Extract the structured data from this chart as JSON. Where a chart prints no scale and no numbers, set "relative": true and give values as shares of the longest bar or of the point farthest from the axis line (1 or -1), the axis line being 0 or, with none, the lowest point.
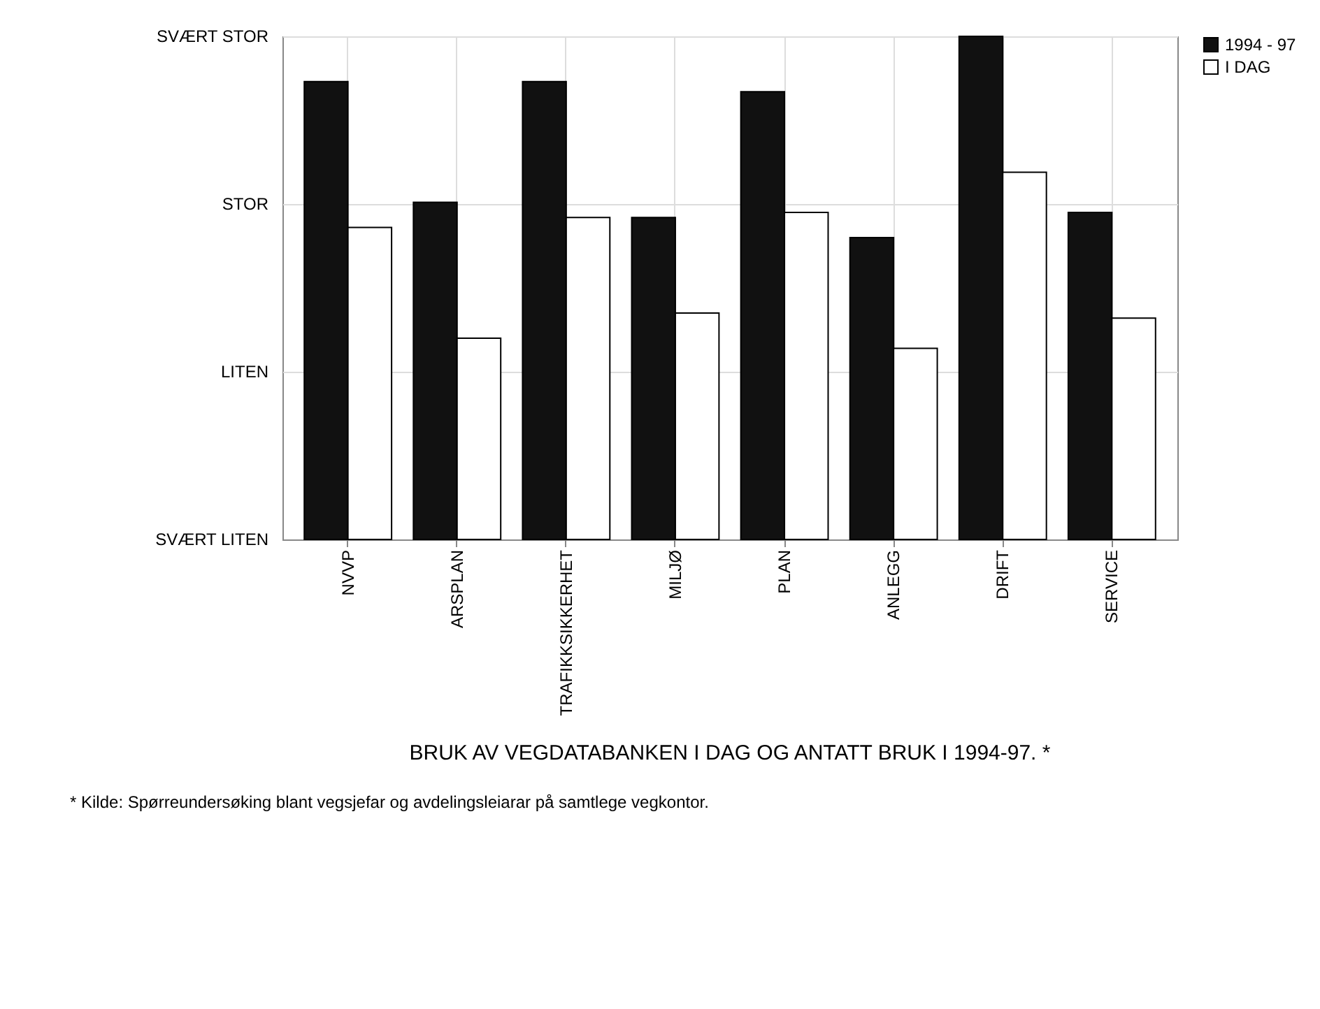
{
  "chart_data": {
    "type": "bar",
    "title": "BRUK AV VEGDATABANKEN I DAG OG ANTATT BRUK I 1994-97. *",
    "categories": [
      "NVVP",
      "ARSPLAN",
      "TRAFIKKSIKKERHET",
      "MILJØ",
      "PLAN",
      "ANLEGG",
      "DRIFT",
      "SERVICE"
    ],
    "relative": true,
    "series": [
      {
        "name": "1994 - 97",
        "color": "#111111",
        "values": [
          0.91,
          0.67,
          0.91,
          0.64,
          0.89,
          0.6,
          1,
          0.65
        ]
      },
      {
        "name": "I DAG",
        "color": "#ffffff",
        "values": [
          0.62,
          0.4,
          0.64,
          0.45,
          0.65,
          0.38,
          0.73,
          0.44
        ]
      }
    ],
    "grid": true,
    "legend": "right",
    "annotations": [
      "SVÆRT LITEN",
      "LITEN",
      "STOR",
      "SVÆRT STOR",
      "* Kilde: Spørreundersøking blant vegsjefar og avdelingsleiarar på samtlege vegkontor."
    ]
  }
}
